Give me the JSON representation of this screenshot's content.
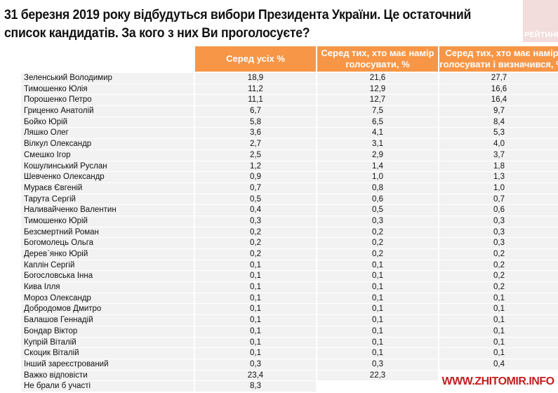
{
  "chart_data": {
    "type": "table",
    "title": "31 березня 2019 року відбудуться вибори Президента України. Це остаточний список кандидатів. За кого з них Ви проголосуєте?",
    "columns": [
      "Серед усіх %",
      "Серед тих, хто має намір голосувати, %",
      "Серед тих, хто має намір голосувати і визначився, %"
    ],
    "rows": [
      [
        "Зеленський Володимир",
        "18,9",
        "21,6",
        "27,7"
      ],
      [
        "Тимошенко Юлія",
        "11,2",
        "12,9",
        "16,6"
      ],
      [
        "Порошенко Петро",
        "11,1",
        "12,7",
        "16,4"
      ],
      [
        "Гриценко Анатолій",
        "6,7",
        "7,5",
        "9,7"
      ],
      [
        "Бойко Юрій",
        "5,8",
        "6,5",
        "8,4"
      ],
      [
        "Ляшко Олег",
        "3,6",
        "4,1",
        "5,3"
      ],
      [
        "Вілкул Олександр",
        "2,7",
        "3,1",
        "4,0"
      ],
      [
        "Смешко Ігор",
        "2,5",
        "2,9",
        "3,7"
      ],
      [
        "Кошулинський Руслан",
        "1,2",
        "1,4",
        "1,8"
      ],
      [
        "Шевченко Олександр",
        "0,9",
        "1,0",
        "1,3"
      ],
      [
        "Мураєв Євгеній",
        "0,7",
        "0,8",
        "1,0"
      ],
      [
        "Тарута Сергій",
        "0,5",
        "0,6",
        "0,7"
      ],
      [
        "Наливайченко Валентин",
        "0,4",
        "0,5",
        "0,6"
      ],
      [
        "Тимошенко Юрій",
        "0,3",
        "0,3",
        "0,3"
      ],
      [
        "Безсмертний Роман",
        "0,2",
        "0,2",
        "0,3"
      ],
      [
        "Богомолець Ольга",
        "0,2",
        "0,2",
        "0,3"
      ],
      [
        "Дерев`янко Юрій",
        "0,2",
        "0,2",
        "0,2"
      ],
      [
        "Каплін Сергій",
        "0,1",
        "0,1",
        "0,2"
      ],
      [
        "Богословська Інна",
        "0,1",
        "0,1",
        "0,2"
      ],
      [
        "Кива Ілля",
        "0,1",
        "0,1",
        "0,2"
      ],
      [
        "Мороз Олександр",
        "0,1",
        "0,1",
        "0,1"
      ],
      [
        "Добродомов Дмитро",
        "0,1",
        "0,1",
        "0,1"
      ],
      [
        "Балашов Геннадій",
        "0,1",
        "0,1",
        "0,1"
      ],
      [
        "Бондар Віктор",
        "0,1",
        "0,1",
        "0,1"
      ],
      [
        "Купрій Віталій",
        "0,1",
        "0,1",
        "0,1"
      ],
      [
        "Скоцик Віталій",
        "0,1",
        "0,1",
        "0,1"
      ],
      [
        "Інший зареєстрований",
        "0,3",
        "0,3",
        "0,4"
      ],
      [
        "Важко відповісти",
        "23,4",
        "22,3",
        null
      ],
      [
        "Не брали б участі",
        "8,3",
        null,
        null
      ]
    ]
  },
  "brand": "РЕЙТИНГ",
  "watermark": "WWW.ZHITOMIR.INFO",
  "colors": {
    "header": "#f79646",
    "row": "#f2f2f2",
    "watermark": "#c41f1f"
  }
}
